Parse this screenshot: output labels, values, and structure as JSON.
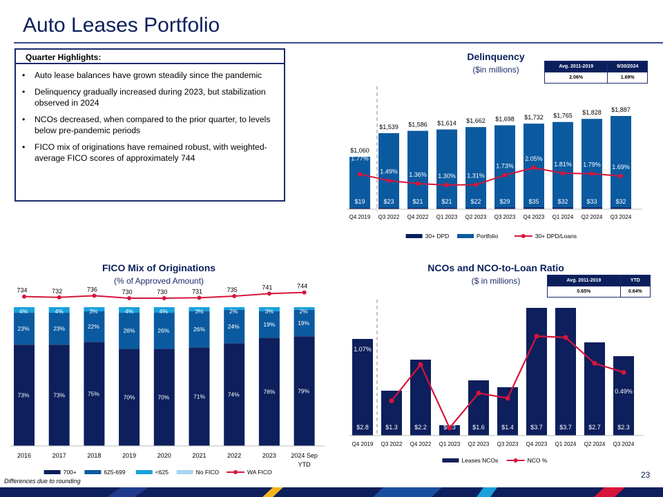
{
  "page": {
    "title": "Auto Leases Portfolio",
    "page_number": "23",
    "footnote": "Differences due to rounding"
  },
  "highlights": {
    "heading": "Quarter Highlights:",
    "bullets": [
      "Auto lease balances have grown steadily since the pandemic",
      "Delinquency gradually increased during 2023, but stabilization observed in 2024",
      "NCOs decreased, when compared to the prior quarter, to levels below pre-pandemic periods",
      "FICO mix of originations have remained robust, with weighted-average FICO scores of approximately 744"
    ]
  },
  "delinquency_table": {
    "headers": [
      "Avg. 2011-2019",
      "9/30/2024"
    ],
    "values": [
      "2.06%",
      "1.69%"
    ]
  },
  "nco_table": {
    "headers": [
      "Avg. 2011-2019",
      "YTD"
    ],
    "values": [
      "0.65%",
      "0.64%"
    ]
  },
  "colors": {
    "navy": "#0d1f5c",
    "blue": "#0b5aa0",
    "teal": "#1aa0dc",
    "light": "#a9d4f2",
    "red": "#d6153b"
  },
  "chart_data": [
    {
      "id": "delinquency",
      "type": "bar",
      "title": "Delinquency",
      "subtitle": "($in millions)",
      "categories": [
        "Q4 2019",
        "Q3 2022",
        "Q4 2022",
        "Q1 2023",
        "Q2 2023",
        "Q3 2023",
        "Q4 2023",
        "Q1 2024",
        "Q2 2024",
        "Q3 2024"
      ],
      "series": [
        {
          "name": "30+ DPD",
          "values": [
            19,
            23,
            21,
            21,
            22,
            29,
            35,
            32,
            33,
            32
          ],
          "labels": [
            "$19",
            "$23",
            "$21",
            "$21",
            "$22",
            "$29",
            "$35",
            "$32",
            "$33",
            "$32"
          ]
        },
        {
          "name": "Portfolio",
          "values": [
            1060,
            1539,
            1586,
            1614,
            1662,
            1698,
            1732,
            1765,
            1828,
            1887
          ],
          "labels": [
            "$1,060",
            "$1,539",
            "$1,586",
            "$1,614",
            "$1,662",
            "$1,698",
            "$1,732",
            "$1,765",
            "$1,828",
            "$1,887"
          ]
        },
        {
          "name": "30+ DPD/Loans",
          "type": "line",
          "values": [
            1.77,
            1.49,
            1.36,
            1.3,
            1.31,
            1.73,
            2.05,
            1.81,
            1.79,
            1.69
          ],
          "labels": [
            "1.77%",
            "1.49%",
            "1.36%",
            "1.30%",
            "1.31%",
            "1.73%",
            "2.05%",
            "1.81%",
            "1.79%",
            "1.69%"
          ]
        }
      ],
      "legend": [
        "30+ DPD",
        "Portfolio",
        "30+ DPD/Loans"
      ]
    },
    {
      "id": "fico",
      "type": "bar",
      "stacked": true,
      "title": "FICO Mix of Originations",
      "subtitle": "(% of Approved Amount)",
      "categories": [
        "2016",
        "2017",
        "2018",
        "2019",
        "2020",
        "2021",
        "2022",
        "2023",
        "2024 Sep YTD"
      ],
      "series": [
        {
          "name": "700+",
          "values": [
            73,
            73,
            75,
            70,
            70,
            71,
            74,
            78,
            79
          ],
          "labels": [
            "73%",
            "73%",
            "75%",
            "70%",
            "70%",
            "71%",
            "74%",
            "78%",
            "79%"
          ]
        },
        {
          "name": "625-699",
          "values": [
            23,
            23,
            22,
            26,
            26,
            26,
            24,
            19,
            19
          ],
          "labels": [
            "23%",
            "23%",
            "22%",
            "26%",
            "26%",
            "26%",
            "24%",
            "19%",
            "19%"
          ]
        },
        {
          "name": "<625",
          "values": [
            4,
            4,
            3,
            4,
            4,
            3,
            2,
            3,
            2
          ],
          "labels": [
            "4%",
            "4%",
            "3%",
            "4%",
            "4%",
            "3%",
            "2%",
            "3%",
            "2%"
          ]
        },
        {
          "name": "No FICO",
          "values": [
            0,
            0,
            0,
            0,
            0,
            0,
            0,
            0,
            0
          ]
        },
        {
          "name": "WA FICO",
          "type": "line",
          "values": [
            734,
            732,
            736,
            730,
            730,
            731,
            735,
            741,
            744
          ],
          "labels": [
            "734",
            "732",
            "736",
            "730",
            "730",
            "731",
            "735",
            "741",
            "744"
          ]
        }
      ],
      "legend": [
        "700+",
        "625-699",
        "<625",
        "No FICO",
        "WA FICO"
      ]
    },
    {
      "id": "nco",
      "type": "bar",
      "title": "NCOs and NCO-to-Loan Ratio",
      "subtitle": "($ in millions)",
      "categories": [
        "Q4 2019",
        "Q3 2022",
        "Q4 2022",
        "Q1 2023",
        "Q2 2023",
        "Q3 2023",
        "Q4 2023",
        "Q1 2024",
        "Q2 2024",
        "Q3 2024"
      ],
      "series": [
        {
          "name": "Leases NCOs",
          "values": [
            2.8,
            1.3,
            2.2,
            0.3,
            1.6,
            1.4,
            3.7,
            3.7,
            2.7,
            2.3
          ],
          "labels": [
            "$2.8",
            "$1.3",
            "$2.2",
            "$0.3",
            "$1.6",
            "$1.4",
            "$3.7",
            "$3.7",
            "$2.7",
            "$2.3"
          ]
        },
        {
          "name": "NCO %",
          "type": "line",
          "values": [
            1.07,
            0.27,
            0.55,
            0.06,
            0.33,
            0.29,
            0.77,
            0.76,
            0.56,
            0.49
          ],
          "labels": [
            "1.07%",
            "",
            "",
            "",
            "",
            "",
            "",
            "",
            "",
            "0.49%"
          ]
        }
      ],
      "legend": [
        "Leases NCOs",
        "NCO %"
      ]
    }
  ]
}
